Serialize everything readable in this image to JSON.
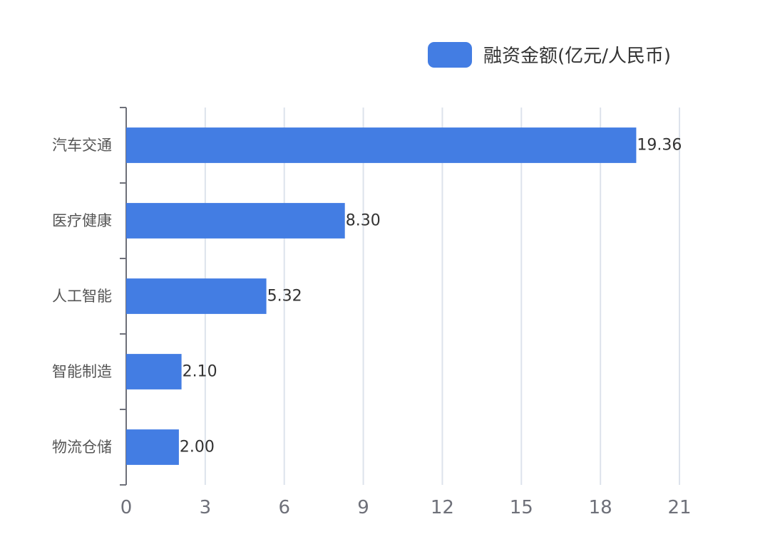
{
  "chart_data": {
    "type": "bar",
    "orientation": "horizontal",
    "title": "",
    "xlabel": "",
    "ylabel": "",
    "categories": [
      "汽车交通",
      "医疗健康",
      "人工智能",
      "智能制造",
      "物流仓储"
    ],
    "series": [
      {
        "name": "融资金额(亿元/人民币)",
        "values": [
          19.36,
          8.3,
          5.32,
          2.1,
          2.0
        ],
        "value_labels": [
          "19.36",
          "8.30",
          "5.32",
          "2.10",
          "2.00"
        ],
        "color": "#437de3"
      }
    ],
    "xlim": [
      0,
      21
    ],
    "xticks": [
      0,
      3,
      6,
      9,
      12,
      15,
      18,
      21
    ],
    "grid": true,
    "legend_position": "top-right"
  },
  "colors": {
    "bar": "#437de3",
    "grid": "#dde3ec",
    "axis": "#6e7079",
    "category_text": "#555555",
    "tick_text": "#6e7079",
    "value_text": "#333333"
  }
}
